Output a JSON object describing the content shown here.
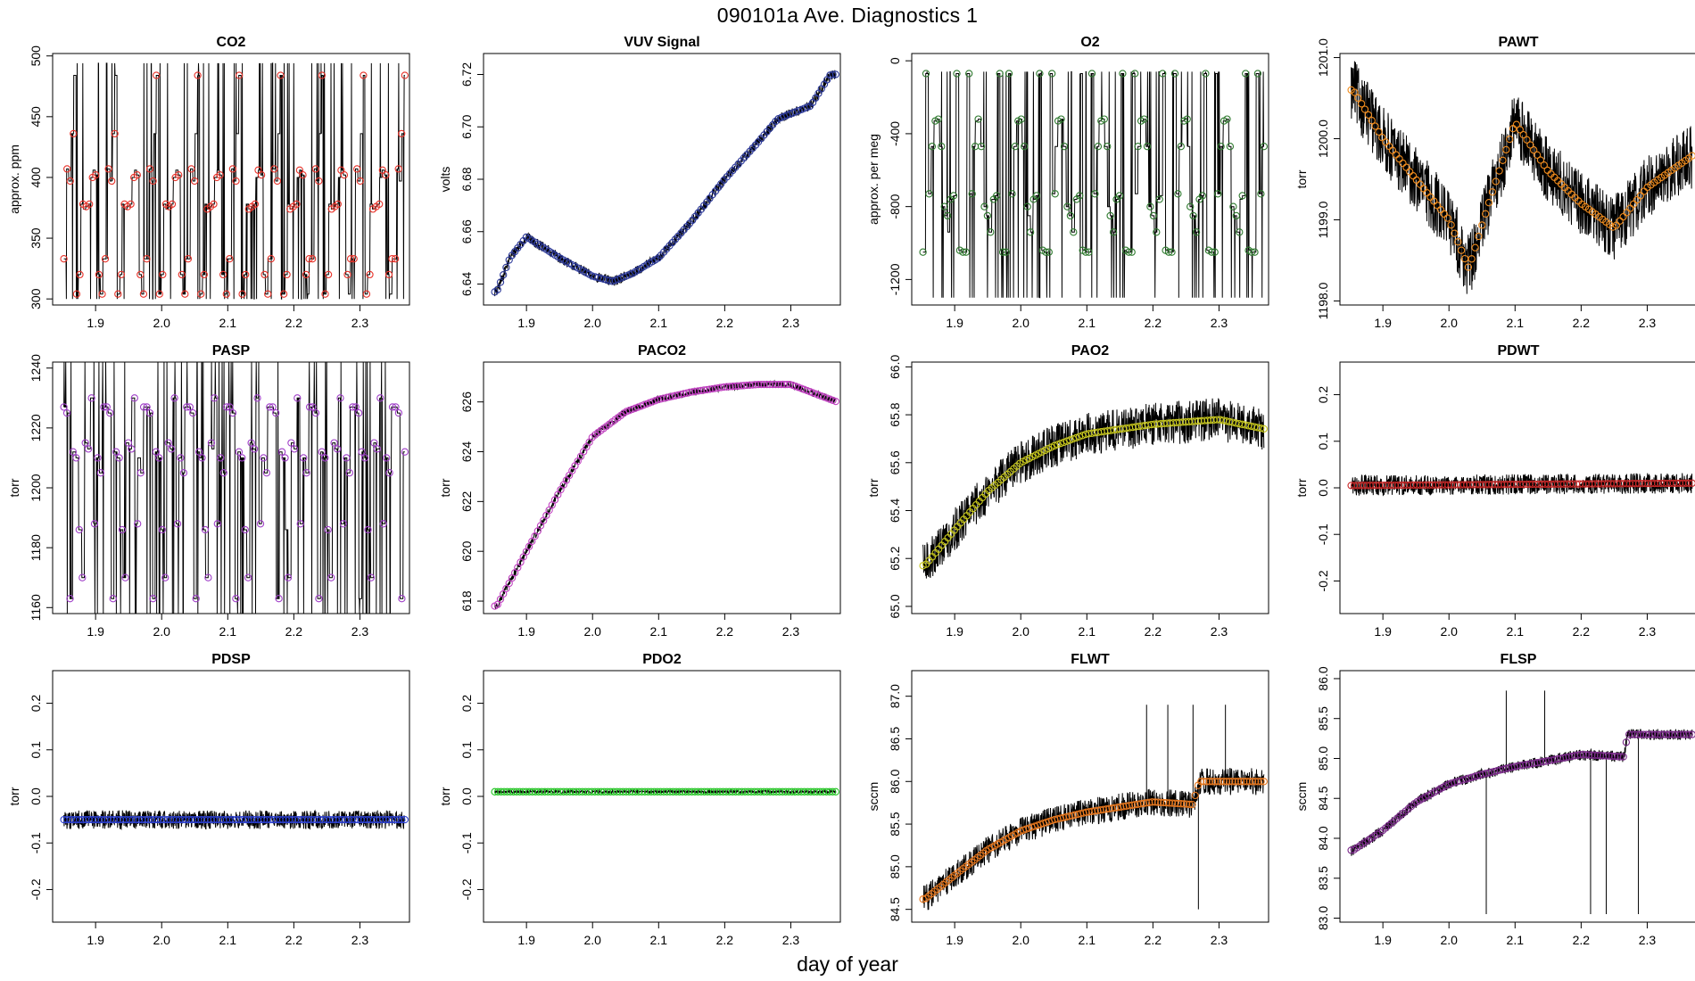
{
  "figure_title": "090101a   Ave. Diagnostics 1",
  "x_label": "day of year",
  "chart_data": [
    {
      "type": "line",
      "title": "CO2",
      "ylabel": "approx. ppm",
      "xlim": [
        1.835,
        2.375
      ],
      "ylim": [
        295,
        502
      ],
      "xticks": [
        1.9,
        2.0,
        2.1,
        2.2,
        2.3
      ],
      "xtick_labels": [
        "1.9",
        "2.0",
        "2.1",
        "2.2",
        "2.3"
      ],
      "yticks": [
        300,
        350,
        400,
        450,
        500
      ],
      "ytick_labels": [
        "300",
        "350",
        "400",
        "450",
        "500"
      ],
      "marker_color": "#e8332a",
      "pattern": "cycle",
      "cycle": [
        333,
        407,
        397,
        436,
        484,
        304,
        320,
        378,
        374,
        376,
        378,
        400,
        406,
        402,
        320,
        304,
        333
      ],
      "clip_hi": 494,
      "noise": 0,
      "spikes": 2,
      "spike_lo": 300,
      "spike_hi": 494,
      "n_points": 108
    },
    {
      "type": "line",
      "title": "VUV Signal",
      "ylabel": "volts",
      "xlim": [
        1.835,
        2.375
      ],
      "ylim": [
        6.632,
        6.728
      ],
      "xticks": [
        1.9,
        2.0,
        2.1,
        2.2,
        2.3
      ],
      "xtick_labels": [
        "1.9",
        "2.0",
        "2.1",
        "2.2",
        "2.3"
      ],
      "yticks": [
        6.64,
        6.66,
        6.68,
        6.7,
        6.72
      ],
      "ytick_labels": [
        "6.64",
        "6.66",
        "6.68",
        "6.70",
        "6.72"
      ],
      "marker_color": "#2d3a9a",
      "pattern": "trend",
      "anchors": [
        [
          1.855,
          6.637
        ],
        [
          1.875,
          6.65
        ],
        [
          1.9,
          6.658
        ],
        [
          1.95,
          6.65
        ],
        [
          2.0,
          6.643
        ],
        [
          2.03,
          6.641
        ],
        [
          2.06,
          6.644
        ],
        [
          2.1,
          6.65
        ],
        [
          2.15,
          6.664
        ],
        [
          2.2,
          6.68
        ],
        [
          2.25,
          6.694
        ],
        [
          2.28,
          6.703
        ],
        [
          2.33,
          6.708
        ],
        [
          2.36,
          6.72
        ]
      ],
      "noise": 0.002,
      "spikes": 0,
      "n_points": 120
    },
    {
      "type": "line",
      "title": "O2",
      "ylabel": "approx. per meg",
      "xlim": [
        1.835,
        2.375
      ],
      "ylim": [
        -1340,
        40
      ],
      "xticks": [
        1.9,
        2.0,
        2.1,
        2.2,
        2.3
      ],
      "xtick_labels": [
        "1.9",
        "2.0",
        "2.1",
        "2.2",
        "2.3"
      ],
      "yticks": [
        -1200,
        -800,
        -400,
        0
      ],
      "ytick_labels": [
        "-1200",
        "-800",
        "-400",
        "0"
      ],
      "marker_color": "#2f7a2f",
      "pattern": "cycle",
      "cycle": [
        -1050,
        -70,
        -730,
        -470,
        -330,
        -320,
        -470,
        -800,
        -850,
        -940,
        -760,
        -740,
        -70,
        -1040,
        -1050
      ],
      "noise": 0,
      "spikes": 1,
      "spike_lo": -1300,
      "spike_hi": -60,
      "n_points": 112
    },
    {
      "type": "line",
      "title": "PAWT",
      "ylabel": "torr",
      "xlim": [
        1.835,
        2.375
      ],
      "ylim": [
        1197.95,
        1201.05
      ],
      "xticks": [
        1.9,
        2.0,
        2.1,
        2.2,
        2.3
      ],
      "xtick_labels": [
        "1.9",
        "2.0",
        "2.1",
        "2.2",
        "2.3"
      ],
      "yticks": [
        1198.0,
        1199.0,
        1200.0,
        1201.0
      ],
      "ytick_labels": [
        "1198.0",
        "1199.0",
        "1200.0",
        "1201.0"
      ],
      "marker_color": "#f08c1e",
      "pattern": "trend",
      "anchors": [
        [
          1.855,
          1200.6
        ],
        [
          1.9,
          1200.0
        ],
        [
          1.96,
          1199.4
        ],
        [
          2.0,
          1199.0
        ],
        [
          2.03,
          1198.4
        ],
        [
          2.06,
          1199.2
        ],
        [
          2.1,
          1200.2
        ],
        [
          2.15,
          1199.6
        ],
        [
          2.2,
          1199.2
        ],
        [
          2.25,
          1198.9
        ],
        [
          2.3,
          1199.4
        ],
        [
          2.37,
          1199.8
        ]
      ],
      "noise": 0.4,
      "spikes": 0,
      "n_points": 100
    },
    {
      "type": "line",
      "title": "PASP",
      "ylabel": "torr",
      "xlim": [
        1.835,
        2.375
      ],
      "ylim": [
        1158,
        1242
      ],
      "xticks": [
        1.9,
        2.0,
        2.1,
        2.2,
        2.3
      ],
      "xtick_labels": [
        "1.9",
        "2.0",
        "2.1",
        "2.2",
        "2.3"
      ],
      "yticks": [
        1160,
        1180,
        1200,
        1220,
        1240
      ],
      "ytick_labels": [
        "1160",
        "1180",
        "1200",
        "1220",
        "1240"
      ],
      "marker_color": "#a040c8",
      "pattern": "cycle",
      "cycle": [
        1227,
        1225,
        1163,
        1212,
        1210,
        1186,
        1170,
        1215,
        1213,
        1230,
        1188,
        1210,
        1205,
        1227
      ],
      "noise": 0,
      "spikes": 0,
      "n_points": 112
    },
    {
      "type": "line",
      "title": "PACO2",
      "ylabel": "torr",
      "xlim": [
        1.835,
        2.375
      ],
      "ylim": [
        617.5,
        627.6
      ],
      "xticks": [
        1.9,
        2.0,
        2.1,
        2.2,
        2.3
      ],
      "xtick_labels": [
        "1.9",
        "2.0",
        "2.1",
        "2.2",
        "2.3"
      ],
      "yticks": [
        618,
        620,
        622,
        624,
        626
      ],
      "ytick_labels": [
        "618",
        "620",
        "622",
        "624",
        "626"
      ],
      "marker_color": "#c040c0",
      "pattern": "trend",
      "anchors": [
        [
          1.855,
          617.8
        ],
        [
          1.9,
          620.0
        ],
        [
          1.95,
          622.4
        ],
        [
          2.0,
          624.6
        ],
        [
          2.05,
          625.6
        ],
        [
          2.1,
          626.1
        ],
        [
          2.15,
          626.4
        ],
        [
          2.2,
          626.6
        ],
        [
          2.25,
          626.7
        ],
        [
          2.3,
          626.7
        ],
        [
          2.37,
          626.0
        ]
      ],
      "noise": 0.15,
      "spikes": 0,
      "n_points": 120
    },
    {
      "type": "line",
      "title": "PAO2",
      "ylabel": "torr",
      "xlim": [
        1.835,
        2.375
      ],
      "ylim": [
        64.97,
        66.02
      ],
      "xticks": [
        1.9,
        2.0,
        2.1,
        2.2,
        2.3
      ],
      "xtick_labels": [
        "1.9",
        "2.0",
        "2.1",
        "2.2",
        "2.3"
      ],
      "yticks": [
        65.0,
        65.2,
        65.4,
        65.6,
        65.8,
        66.0
      ],
      "ytick_labels": [
        "65.0",
        "65.2",
        "65.4",
        "65.6",
        "65.8",
        "66.0"
      ],
      "marker_color": "#c8c81e",
      "pattern": "trend",
      "anchors": [
        [
          1.855,
          65.17
        ],
        [
          1.9,
          65.32
        ],
        [
          1.95,
          65.48
        ],
        [
          2.0,
          65.6
        ],
        [
          2.05,
          65.67
        ],
        [
          2.1,
          65.72
        ],
        [
          2.2,
          65.76
        ],
        [
          2.3,
          65.78
        ],
        [
          2.37,
          65.74
        ]
      ],
      "noise": 0.09,
      "spikes": 0,
      "clip_hi": 65.91,
      "clip_lo": 65.0,
      "n_points": 110
    },
    {
      "type": "line",
      "title": "PDWT",
      "ylabel": "torr",
      "xlim": [
        1.835,
        2.375
      ],
      "ylim": [
        -0.27,
        0.27
      ],
      "xticks": [
        1.9,
        2.0,
        2.1,
        2.2,
        2.3
      ],
      "xtick_labels": [
        "1.9",
        "2.0",
        "2.1",
        "2.2",
        "2.3"
      ],
      "yticks": [
        -0.2,
        -0.1,
        0.0,
        0.1,
        0.2
      ],
      "ytick_labels": [
        "-0.2",
        "-0.1",
        "0.0",
        "0.1",
        "0.2"
      ],
      "marker_color": "#c82828",
      "pattern": "trend",
      "anchors": [
        [
          1.855,
          0.005
        ],
        [
          2.37,
          0.01
        ]
      ],
      "noise": 0.022,
      "spikes": 0,
      "n_points": 110
    },
    {
      "type": "line",
      "title": "PDSP",
      "ylabel": "torr",
      "xlim": [
        1.835,
        2.375
      ],
      "ylim": [
        -0.27,
        0.27
      ],
      "xticks": [
        1.9,
        2.0,
        2.1,
        2.2,
        2.3
      ],
      "xtick_labels": [
        "1.9",
        "2.0",
        "2.1",
        "2.2",
        "2.3"
      ],
      "yticks": [
        -0.2,
        -0.1,
        0.0,
        0.1,
        0.2
      ],
      "ytick_labels": [
        "-0.2",
        "-0.1",
        "0.0",
        "0.1",
        "0.2"
      ],
      "marker_color": "#2b3fd0",
      "pattern": "trend",
      "anchors": [
        [
          1.855,
          -0.05
        ],
        [
          2.37,
          -0.05
        ]
      ],
      "noise": 0.02,
      "spikes": 0,
      "n_points": 110
    },
    {
      "type": "line",
      "title": "PDO2",
      "ylabel": "torr",
      "xlim": [
        1.835,
        2.375
      ],
      "ylim": [
        -0.27,
        0.27
      ],
      "xticks": [
        1.9,
        2.0,
        2.1,
        2.2,
        2.3
      ],
      "xtick_labels": [
        "1.9",
        "2.0",
        "2.1",
        "2.2",
        "2.3"
      ],
      "yticks": [
        -0.2,
        -0.1,
        0.0,
        0.1,
        0.2
      ],
      "ytick_labels": [
        "-0.2",
        "-0.1",
        "0.0",
        "0.1",
        "0.2"
      ],
      "marker_color": "#22c422",
      "pattern": "trend",
      "anchors": [
        [
          1.855,
          0.01
        ],
        [
          2.37,
          0.01
        ]
      ],
      "noise": 0.003,
      "spikes": 0,
      "n_points": 110
    },
    {
      "type": "line",
      "title": "FLWT",
      "ylabel": "sccm",
      "xlim": [
        1.835,
        2.375
      ],
      "ylim": [
        84.35,
        87.3
      ],
      "xticks": [
        1.9,
        2.0,
        2.1,
        2.2,
        2.3
      ],
      "xtick_labels": [
        "1.9",
        "2.0",
        "2.1",
        "2.2",
        "2.3"
      ],
      "yticks": [
        84.5,
        85.0,
        85.5,
        86.0,
        86.5,
        87.0
      ],
      "ytick_labels": [
        "84.5",
        "85.0",
        "85.5",
        "86.0",
        "86.5",
        "87.0"
      ],
      "marker_color": "#e8781e",
      "pattern": "trend",
      "anchors": [
        [
          1.855,
          84.62
        ],
        [
          1.9,
          84.9
        ],
        [
          1.95,
          85.2
        ],
        [
          2.0,
          85.42
        ],
        [
          2.05,
          85.55
        ],
        [
          2.1,
          85.64
        ],
        [
          2.15,
          85.7
        ],
        [
          2.2,
          85.76
        ],
        [
          2.26,
          85.73
        ],
        [
          2.27,
          86.0
        ],
        [
          2.3,
          86.0
        ],
        [
          2.37,
          86.0
        ]
      ],
      "noise": 0.16,
      "spikes": 5,
      "spike_lo": 84.5,
      "spike_hi": 86.9,
      "n_points": 120
    },
    {
      "type": "line",
      "title": "FLSP",
      "ylabel": "sccm",
      "xlim": [
        1.835,
        2.375
      ],
      "ylim": [
        82.95,
        86.1
      ],
      "xticks": [
        1.9,
        2.0,
        2.1,
        2.2,
        2.3
      ],
      "xtick_labels": [
        "1.9",
        "2.0",
        "2.1",
        "2.2",
        "2.3"
      ],
      "yticks": [
        83.0,
        83.5,
        84.0,
        84.5,
        85.0,
        85.5,
        86.0
      ],
      "ytick_labels": [
        "83.0",
        "83.5",
        "84.0",
        "84.5",
        "85.0",
        "85.5",
        "86.0"
      ],
      "marker_color": "#7a2a8a",
      "pattern": "trend",
      "anchors": [
        [
          1.855,
          83.85
        ],
        [
          1.9,
          84.1
        ],
        [
          1.95,
          84.45
        ],
        [
          2.0,
          84.68
        ],
        [
          2.05,
          84.8
        ],
        [
          2.1,
          84.9
        ],
        [
          2.15,
          84.97
        ],
        [
          2.2,
          85.05
        ],
        [
          2.265,
          85.02
        ],
        [
          2.27,
          85.3
        ],
        [
          2.37,
          85.3
        ]
      ],
      "noise": 0.07,
      "spikes": 6,
      "spike_lo": 83.05,
      "spike_hi": 85.85,
      "n_points": 120
    }
  ]
}
